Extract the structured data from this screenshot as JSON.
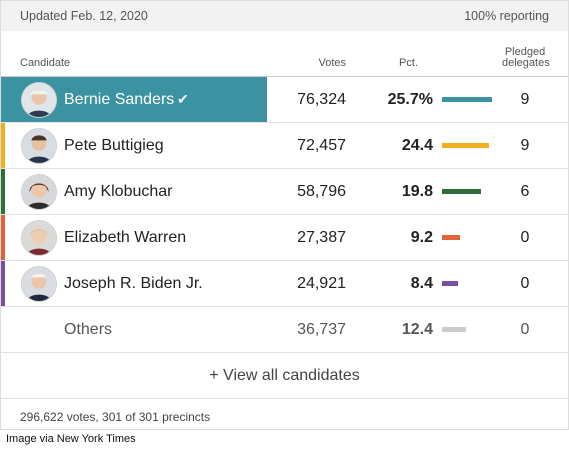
{
  "header": {
    "updated": "Updated Feb. 12, 2020",
    "reporting": "100% reporting"
  },
  "columns": {
    "candidate": "Candidate",
    "votes": "Votes",
    "pct": "Pct.",
    "delegates_line1": "Pledged",
    "delegates_line2": "delegates"
  },
  "candidates": [
    {
      "name": "Bernie Sanders",
      "votes": "76,324",
      "pct": "25.7%",
      "pct_value": 25.7,
      "delegates": "9",
      "color": "#3b93a2",
      "winner": true,
      "checkmark": "✔"
    },
    {
      "name": "Pete Buttigieg",
      "votes": "72,457",
      "pct": "24.4",
      "pct_value": 24.4,
      "delegates": "9",
      "color": "#f2b01e"
    },
    {
      "name": "Amy Klobuchar",
      "votes": "58,796",
      "pct": "19.8",
      "pct_value": 19.8,
      "delegates": "6",
      "color": "#2e6e3c"
    },
    {
      "name": "Elizabeth Warren",
      "votes": "27,387",
      "pct": "9.2",
      "pct_value": 9.2,
      "delegates": "0",
      "color": "#e0633a"
    },
    {
      "name": "Joseph R. Biden Jr.",
      "votes": "24,921",
      "pct": "8.4",
      "pct_value": 8.4,
      "delegates": "0",
      "color": "#7b4fa0"
    },
    {
      "name": "Others",
      "votes": "36,737",
      "pct": "12.4",
      "pct_value": 12.4,
      "delegates": "0",
      "color": "#cccccc"
    }
  ],
  "view_all": "+ View all candidates",
  "footer": "296,622 votes, 301 of 301 precincts",
  "credit": "Image via New York Times"
}
